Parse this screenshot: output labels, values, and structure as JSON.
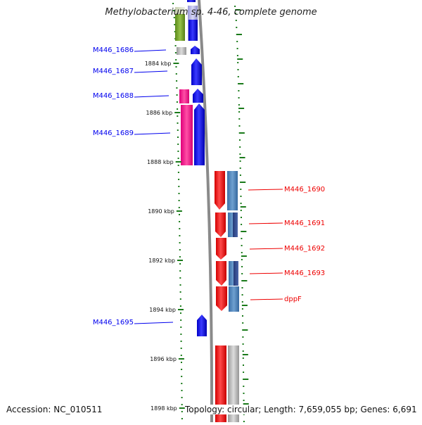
{
  "title": "Methylobacterium sp. 4-46, complete genome",
  "accession_label": "Accession: NC_010511",
  "summary_label": "Topology: circular; Length: 7,659,055 bp; Genes: 6,691",
  "ruler_ticks": [
    {
      "label": "1884 kbp",
      "kbp": 1884
    },
    {
      "label": "1886 kbp",
      "kbp": 1886
    },
    {
      "label": "1888 kbp",
      "kbp": 1888
    },
    {
      "label": "1890 kbp",
      "kbp": 1890
    },
    {
      "label": "1892 kbp",
      "kbp": 1892
    },
    {
      "label": "1894 kbp",
      "kbp": 1894
    },
    {
      "label": "1896 kbp",
      "kbp": 1896
    },
    {
      "label": "1898 kbp",
      "kbp": 1898
    }
  ],
  "left_genes": [
    {
      "label": "M446_1686"
    },
    {
      "label": "M446_1687"
    },
    {
      "label": "M446_1688"
    },
    {
      "label": "M446_1689"
    },
    {
      "label": "M446_1695"
    }
  ],
  "right_genes": [
    {
      "label": "M446_1690"
    },
    {
      "label": "M446_1691"
    },
    {
      "label": "M446_1692"
    },
    {
      "label": "M446_1693"
    },
    {
      "label": "dppF"
    }
  ],
  "colors": {
    "left_strand": "#0000ee",
    "right_strand": "#ee0000",
    "ruler": "#1a7a1a",
    "backbone": "#888888"
  }
}
